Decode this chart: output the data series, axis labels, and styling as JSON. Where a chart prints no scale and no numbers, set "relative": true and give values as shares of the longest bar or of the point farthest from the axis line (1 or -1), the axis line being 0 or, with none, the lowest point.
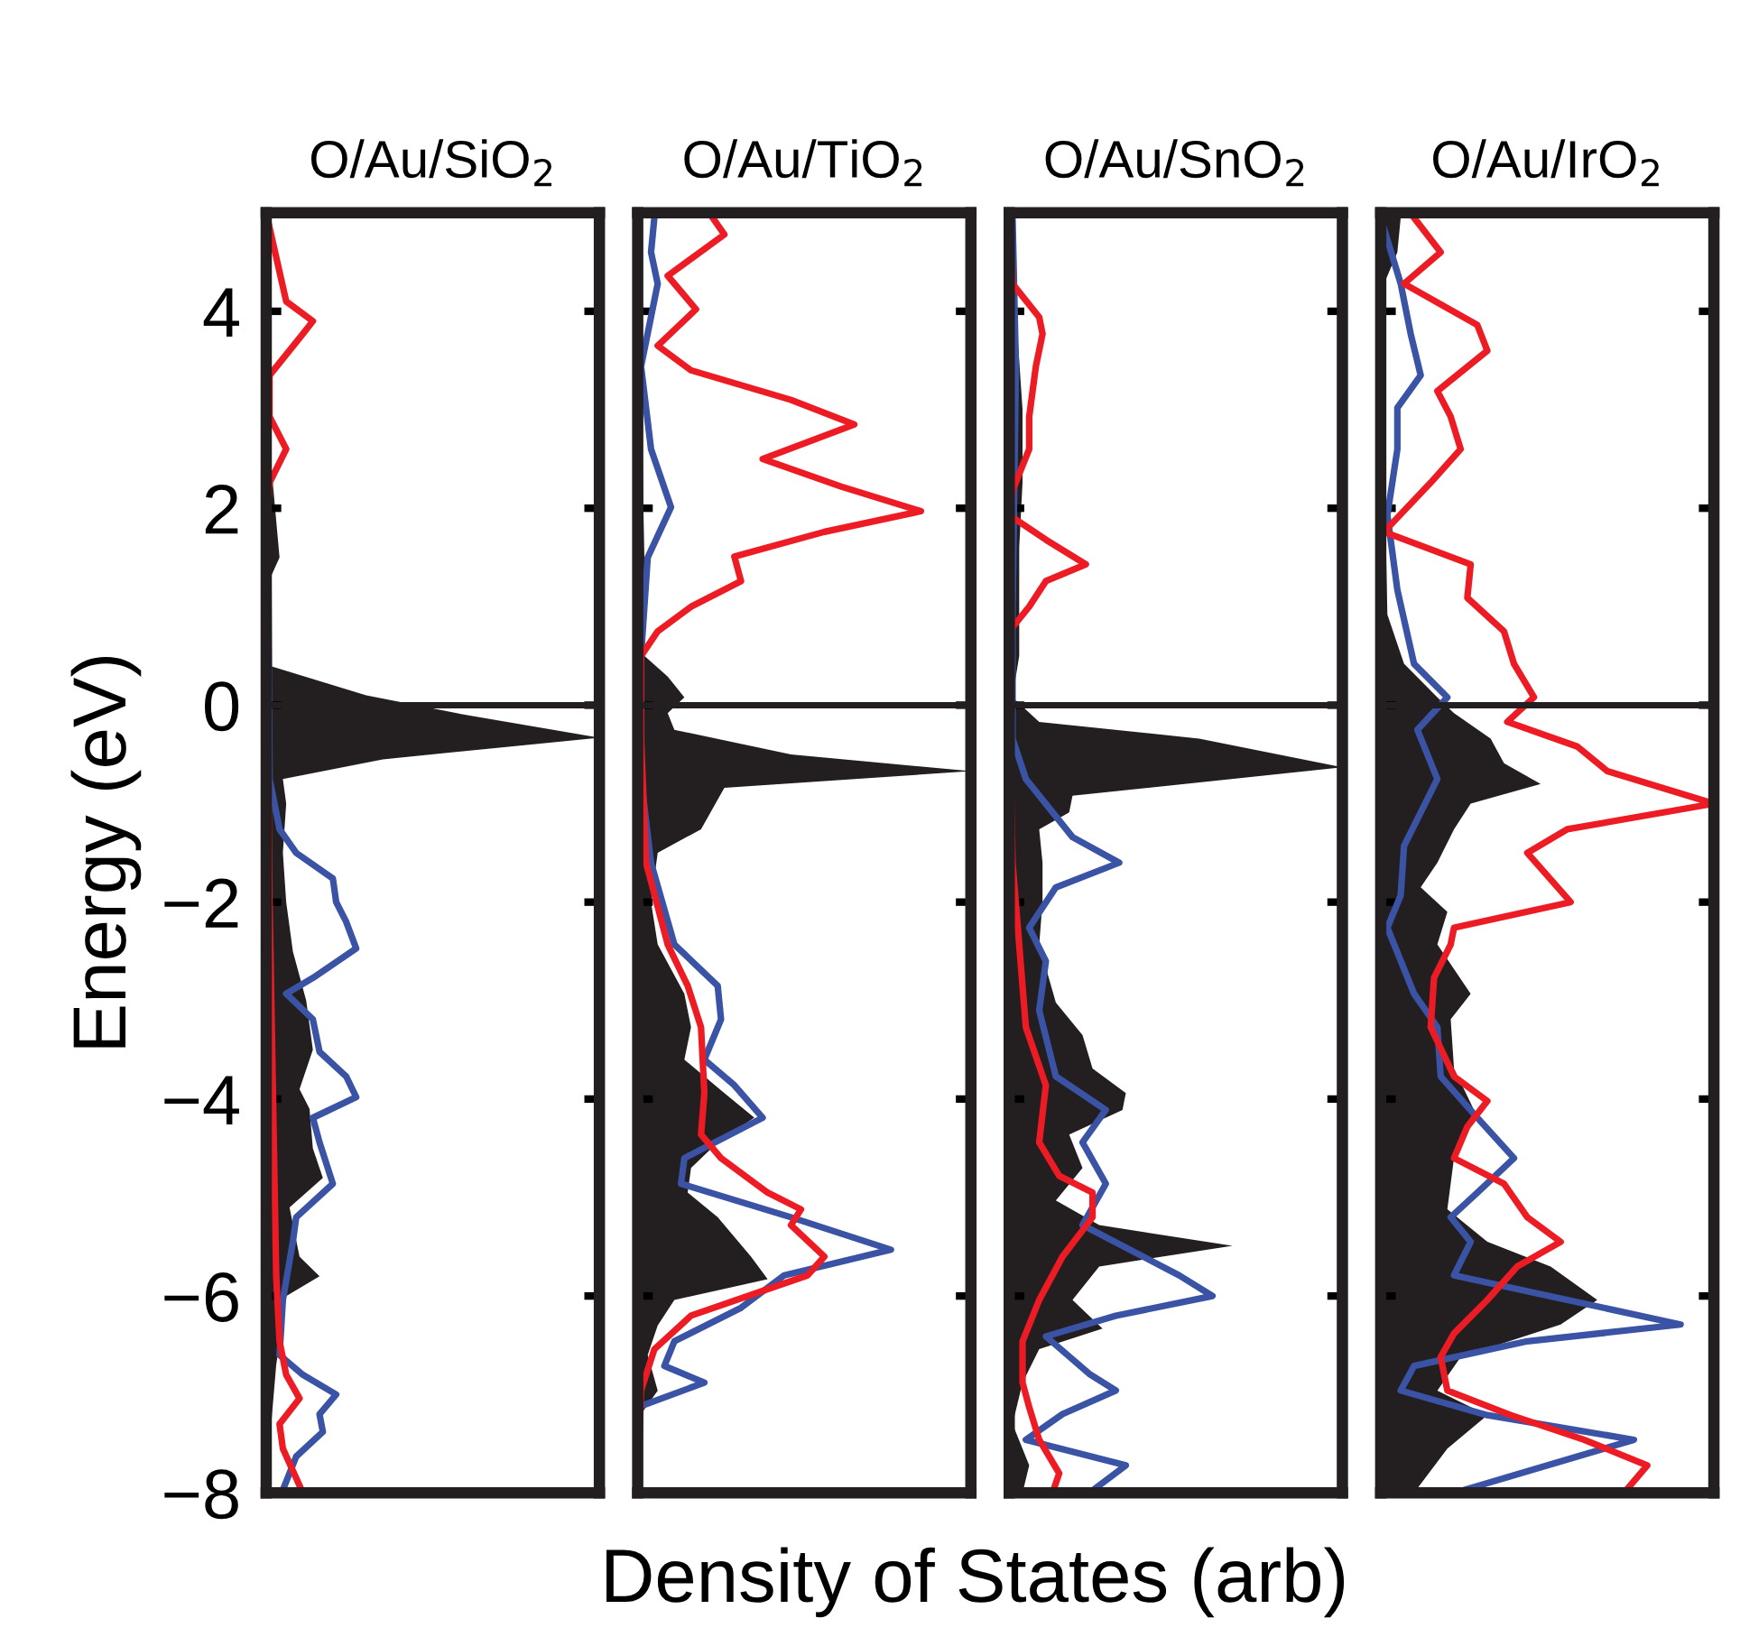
{
  "chart_data": [
    {
      "type": "area",
      "title": "O/Au/SiO$_{2}$",
      "ylabel": "Energy (eV)",
      "xlabel": "Density of States (arb)",
      "orientation": "horizontal",
      "relative": true,
      "ylim": [
        -8,
        5
      ],
      "yticks": [
        {
          "value": -8,
          "label": "−8"
        },
        {
          "value": -6,
          "label": "−6"
        },
        {
          "value": -4,
          "label": "−4"
        },
        {
          "value": -2,
          "label": "−2"
        },
        0,
        2,
        4
      ],
      "tick_labels": "y",
      "ref_lines": [
        {
          "axis": "y",
          "value": 0,
          "color": "#231f20"
        }
      ],
      "series": [
        {
          "color": "#231f20",
          "x": [
            5,
            3,
            1.5,
            1.2,
            0.4,
            0.1,
            -0.1,
            -0.33,
            -0.55,
            -0.75,
            -1.0,
            -1.5,
            -2,
            -2.5,
            -3,
            -3.5,
            -3.9,
            -4.1,
            -4.5,
            -4.8,
            -5.1,
            -5.6,
            -5.8,
            -6.0,
            -6.7,
            -7.5,
            -8
          ],
          "values": [
            0,
            0,
            0.04,
            0,
            0.01,
            0.3,
            0.6,
            1.0,
            0.35,
            0.05,
            0.06,
            0.05,
            0.06,
            0.08,
            0.12,
            0.14,
            0.1,
            0.13,
            0.14,
            0.17,
            0.07,
            0.1,
            0.16,
            0.06,
            0.03,
            0.01,
            0
          ]
        },
        {
          "type": "line",
          "color": "#3a53a4",
          "x": [
            5,
            -0.75,
            -1.26,
            -1.5,
            -1.76,
            -2.0,
            -2.2,
            -2.47,
            -2.77,
            -2.93,
            -3.19,
            -3.52,
            -3.77,
            -3.98,
            -4.19,
            -4.44,
            -4.86,
            -5.2,
            -5.45,
            -6.04,
            -6.6,
            -6.8,
            -7.0,
            -7.2,
            -7.38,
            -7.63,
            -7.97
          ],
          "values": [
            0,
            0.01,
            0.04,
            0.09,
            0.2,
            0.21,
            0.24,
            0.27,
            0.14,
            0.06,
            0.14,
            0.16,
            0.24,
            0.27,
            0.14,
            0.16,
            0.2,
            0.09,
            0.08,
            0.05,
            0.04,
            0.11,
            0.21,
            0.16,
            0.17,
            0.09,
            0.05
          ]
        },
        {
          "type": "line",
          "color": "#ed1c24",
          "x": [
            5,
            4.1,
            3.9,
            3.77,
            3.35,
            2.93,
            2.6,
            2.26,
            1.76,
            -2,
            -5.8,
            -6.46,
            -6.8,
            -7.04,
            -7.3,
            -7.55,
            -8
          ],
          "values": [
            0,
            0.06,
            0.14,
            0.11,
            0.01,
            0.01,
            0.06,
            0.01,
            0,
            0.01,
            0.03,
            0.04,
            0.06,
            0.1,
            0.04,
            0.05,
            0.11
          ]
        }
      ]
    },
    {
      "type": "area",
      "title": "O/Au/TiO$_{2}$",
      "orientation": "horizontal",
      "relative": true,
      "ylim": [
        -8,
        5
      ],
      "yticks": [
        {
          "value": -8,
          "label": null
        },
        {
          "value": -6,
          "label": null
        },
        {
          "value": -4,
          "label": null
        },
        {
          "value": -2,
          "label": null
        },
        {
          "value": 0,
          "label": null
        },
        {
          "value": 2,
          "label": null
        },
        {
          "value": 4,
          "label": null
        }
      ],
      "tick_labels": false,
      "ref_lines": [
        {
          "axis": "y",
          "value": 0,
          "color": "#231f20"
        }
      ],
      "series": [
        {
          "color": "#231f20",
          "x": [
            5,
            1.5,
            0.5,
            0.29,
            0.08,
            -0.08,
            -0.25,
            -0.5,
            -0.67,
            -0.84,
            -1.26,
            -1.5,
            -2.0,
            -2.43,
            -2.93,
            -3.27,
            -3.6,
            -3.94,
            -4.19,
            -4.44,
            -4.7,
            -4.95,
            -5.2,
            -5.6,
            -5.83,
            -6.04,
            -6.3,
            -6.6,
            -6.96,
            -7.2,
            -8
          ],
          "values": [
            0,
            0.02,
            0.02,
            0.09,
            0.14,
            0.09,
            0.11,
            0.46,
            1.0,
            0.26,
            0.19,
            0.06,
            0.04,
            0.06,
            0.14,
            0.16,
            0.14,
            0.26,
            0.35,
            0.24,
            0.16,
            0.15,
            0.24,
            0.34,
            0.39,
            0.11,
            0.06,
            0.03,
            0.06,
            0.01,
            0
          ]
        },
        {
          "type": "line",
          "color": "#3a53a4",
          "x": [
            4.95,
            4.6,
            4.28,
            3.44,
            2.6,
            2.01,
            1.5,
            0.5,
            -0.75,
            -1.6,
            -2.43,
            -2.85,
            -3.19,
            -3.6,
            -3.86,
            -4.19,
            -4.6,
            -4.86,
            -5.2,
            -5.53,
            -5.79,
            -6.12,
            -6.46,
            -6.71,
            -6.88,
            -7.13
          ],
          "values": [
            0.05,
            0.04,
            0.06,
            0.01,
            0.04,
            0.1,
            0.03,
            0.01,
            0.01,
            0.04,
            0.11,
            0.24,
            0.25,
            0.2,
            0.29,
            0.375,
            0.14,
            0.13,
            0.46,
            0.76,
            0.44,
            0.31,
            0.11,
            0.08,
            0.2,
            0
          ]
        },
        {
          "type": "line",
          "color": "#ed1c24",
          "x": [
            4.95,
            4.78,
            4.36,
            4.02,
            3.65,
            3.4,
            3.1,
            2.85,
            2.5,
            2.22,
            1.97,
            1.76,
            1.51,
            1.26,
            1.0,
            0.75,
            0.5,
            -0.34,
            -1.6,
            -2.43,
            -2.85,
            -3.27,
            -3.94,
            -4.36,
            -4.6,
            -4.95,
            -5.12,
            -5.28,
            -5.6,
            -5.79,
            -6.2,
            -6.54,
            -6.96,
            -8
          ],
          "values": [
            0.225,
            0.26,
            0.09,
            0.175,
            0.06,
            0.16,
            0.46,
            0.65,
            0.375,
            0.61,
            0.85,
            0.56,
            0.29,
            0.31,
            0.16,
            0.06,
            0.01,
            0.01,
            0.025,
            0.09,
            0.15,
            0.19,
            0.2,
            0.19,
            0.25,
            0.39,
            0.49,
            0.46,
            0.56,
            0.51,
            0.16,
            0.05,
            0.01,
            0
          ]
        }
      ]
    },
    {
      "type": "area",
      "title": "O/Au/SnO$_{2}$",
      "orientation": "horizontal",
      "relative": true,
      "ylim": [
        -8,
        5
      ],
      "yticks": [
        {
          "value": -8,
          "label": null
        },
        {
          "value": -6,
          "label": null
        },
        {
          "value": -4,
          "label": null
        },
        {
          "value": -2,
          "label": null
        },
        {
          "value": 0,
          "label": null
        },
        {
          "value": 2,
          "label": null
        },
        {
          "value": 4,
          "label": null
        }
      ],
      "tick_labels": false,
      "ref_lines": [
        {
          "axis": "y",
          "value": 0,
          "color": "#231f20"
        }
      ],
      "series": [
        {
          "color": "#231f20",
          "x": [
            5,
            3.0,
            2.26,
            1.6,
            0.5,
            0.08,
            -0.17,
            -0.34,
            -0.63,
            -0.92,
            -1.09,
            -1.26,
            -1.6,
            -2.0,
            -2.43,
            -3.02,
            -3.35,
            -3.69,
            -3.94,
            -4.11,
            -4.36,
            -4.7,
            -5.03,
            -5.28,
            -5.49,
            -5.7,
            -6.04,
            -6.33,
            -6.54,
            -6.88,
            -7.3,
            -7.72,
            -8
          ],
          "values": [
            0,
            0.04,
            0.04,
            0.03,
            0.03,
            0.01,
            0.09,
            0.57,
            1.0,
            0.19,
            0.18,
            0.09,
            0.1,
            0.1,
            0.09,
            0.14,
            0.22,
            0.25,
            0.35,
            0.34,
            0.18,
            0.22,
            0.14,
            0.27,
            0.67,
            0.27,
            0.19,
            0.28,
            0.09,
            0.04,
            0.01,
            0.06,
            0.04
          ]
        },
        {
          "type": "line",
          "color": "#3a53a4",
          "x": [
            4.95,
            3.44,
            0.92,
            -0.34,
            -0.75,
            -1.34,
            -1.6,
            -1.85,
            -2.26,
            -2.6,
            -3.1,
            -3.77,
            -4.11,
            -4.44,
            -4.86,
            -5.28,
            -5.79,
            -6.0,
            -6.2,
            -6.41,
            -6.79,
            -6.96,
            -7.2,
            -7.46,
            -7.72,
            -8
          ],
          "values": [
            0.01,
            0.02,
            0.01,
            0.01,
            0.05,
            0.19,
            0.33,
            0.14,
            0.06,
            0.11,
            0.09,
            0.14,
            0.29,
            0.22,
            0.29,
            0.22,
            0.51,
            0.61,
            0.32,
            0.11,
            0.24,
            0.32,
            0.16,
            0.05,
            0.35,
            0.24
          ]
        },
        {
          "type": "line",
          "color": "#ed1c24",
          "x": [
            4.95,
            4.28,
            3.94,
            3.77,
            3.44,
            2.93,
            2.6,
            2.18,
            1.93,
            1.68,
            1.43,
            1.26,
            1.0,
            0.75,
            0.08,
            -1.6,
            -3.27,
            -3.86,
            -4.44,
            -4.78,
            -4.95,
            -5.2,
            -5.6,
            -6.04,
            -6.46,
            -6.88,
            -7.13,
            -7.46,
            -7.8,
            -8
          ],
          "values": [
            0,
            0.01,
            0.09,
            0.1,
            0.08,
            0.06,
            0.06,
            0.01,
            0.0,
            0.11,
            0.23,
            0.11,
            0.06,
            0.0,
            0.0,
            0.01,
            0.05,
            0.11,
            0.09,
            0.15,
            0.25,
            0.25,
            0.16,
            0.09,
            0.04,
            0.04,
            0.06,
            0.09,
            0.15,
            0.13
          ]
        }
      ]
    },
    {
      "type": "area",
      "title": "O/Au/IrO$_{2}$",
      "orientation": "horizontal",
      "relative": true,
      "ylim": [
        -8,
        5
      ],
      "yticks": [
        {
          "value": -8,
          "label": null
        },
        {
          "value": -6,
          "label": null
        },
        {
          "value": -4,
          "label": null
        },
        {
          "value": -2,
          "label": null
        },
        {
          "value": 0,
          "label": null
        },
        {
          "value": 2,
          "label": null
        },
        {
          "value": 4,
          "label": null
        }
      ],
      "tick_labels": false,
      "ref_lines": [
        {
          "axis": "y",
          "value": 0,
          "color": "#231f20"
        }
      ],
      "series": [
        {
          "color": "#231f20",
          "x": [
            4.95,
            4.6,
            4.28,
            3.44,
            2.6,
            0.92,
            0.42,
            0.08,
            -0.08,
            -0.34,
            -0.59,
            -0.8,
            -1.0,
            -1.26,
            -1.6,
            -1.85,
            -2.1,
            -2.43,
            -2.93,
            -3.19,
            -3.69,
            -4.11,
            -4.6,
            -5.12,
            -5.45,
            -5.7,
            -6.04,
            -6.29,
            -6.62,
            -6.96,
            -7.21,
            -7.55,
            -8
          ],
          "values": [
            0.06,
            0.05,
            0.01,
            0,
            0.01,
            0.02,
            0.07,
            0.17,
            0.22,
            0.33,
            0.37,
            0.48,
            0.27,
            0.22,
            0.17,
            0.12,
            0.2,
            0.17,
            0.27,
            0.21,
            0.22,
            0.28,
            0.22,
            0.2,
            0.32,
            0.51,
            0.65,
            0.54,
            0.24,
            0.17,
            0.32,
            0.2,
            0.1
          ]
        },
        {
          "type": "line",
          "color": "#3a53a4",
          "x": [
            4.95,
            4.28,
            3.77,
            3.35,
            3.02,
            2.6,
            1.93,
            1.17,
            0.42,
            0.08,
            -0.25,
            -0.75,
            -1.43,
            -1.93,
            -2.26,
            -2.93,
            -3.27,
            -3.77,
            -4.19,
            -4.6,
            -4.95,
            -5.2,
            -5.45,
            -5.79,
            -6.04,
            -6.29,
            -6.46,
            -6.71,
            -6.96,
            -7.21,
            -7.46,
            -7.63,
            -8
          ],
          "values": [
            0,
            0.06,
            0.09,
            0.12,
            0.05,
            0.05,
            0.02,
            0.05,
            0.1,
            0.2,
            0.11,
            0.17,
            0.07,
            0.06,
            0.02,
            0.1,
            0.17,
            0.18,
            0.29,
            0.4,
            0.29,
            0.21,
            0.27,
            0.22,
            0.56,
            0.9,
            0.44,
            0.1,
            0.06,
            0.32,
            0.76,
            0.59,
            0.22
          ]
        },
        {
          "type": "line",
          "color": "#ed1c24",
          "x": [
            4.95,
            4.6,
            4.28,
            3.86,
            3.6,
            3.19,
            2.93,
            2.6,
            2.26,
            1.76,
            1.43,
            1.09,
            0.75,
            0.42,
            0.08,
            -0.17,
            -0.42,
            -0.67,
            -1.0,
            -1.26,
            -1.5,
            -2.0,
            -2.26,
            -2.43,
            -2.77,
            -3.27,
            -3.77,
            -4.02,
            -4.28,
            -4.6,
            -4.86,
            -5.2,
            -5.45,
            -5.7,
            -6.04,
            -6.38,
            -6.62,
            -6.96,
            -7.21,
            -7.46,
            -7.72,
            -8
          ],
          "values": [
            0.1,
            0.18,
            0.07,
            0.29,
            0.32,
            0.17,
            0.21,
            0.24,
            0.15,
            0.01,
            0.27,
            0.26,
            0.37,
            0.4,
            0.46,
            0.38,
            0.59,
            0.68,
            1.0,
            0.56,
            0.44,
            0.57,
            0.22,
            0.21,
            0.16,
            0.15,
            0.22,
            0.32,
            0.26,
            0.22,
            0.37,
            0.44,
            0.54,
            0.41,
            0.32,
            0.22,
            0.18,
            0.2,
            0.39,
            0.61,
            0.8,
            0.73
          ]
        }
      ]
    }
  ]
}
